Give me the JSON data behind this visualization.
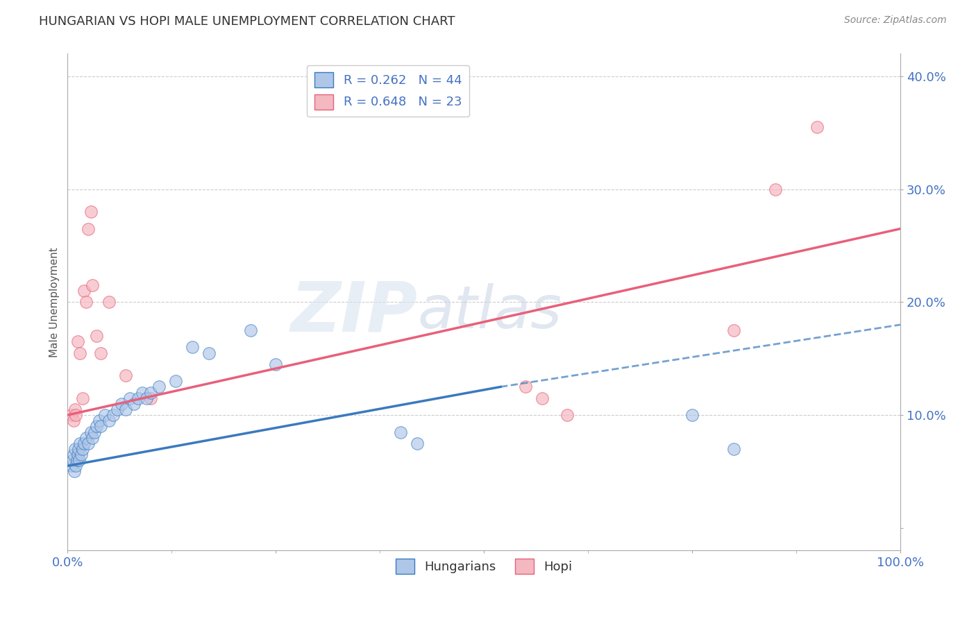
{
  "title": "HUNGARIAN VS HOPI MALE UNEMPLOYMENT CORRELATION CHART",
  "source": "Source: ZipAtlas.com",
  "ylabel": "Male Unemployment",
  "xlabel": "",
  "xlim": [
    0.0,
    1.0
  ],
  "ylim": [
    -0.02,
    0.42
  ],
  "xticks": [
    0.0,
    0.25,
    0.5,
    0.75,
    1.0
  ],
  "xticklabels": [
    "0.0%",
    "",
    "",
    "",
    "100.0%"
  ],
  "yticks": [
    0.0,
    0.1,
    0.2,
    0.3,
    0.4
  ],
  "yticklabels": [
    "",
    "10.0%",
    "20.0%",
    "30.0%",
    "40.0%"
  ],
  "grid_yticks": [
    0.1,
    0.2,
    0.3,
    0.4
  ],
  "legend_entries": [
    {
      "label": "R = 0.262   N = 44",
      "color": "#aec6e8"
    },
    {
      "label": "R = 0.648   N = 23",
      "color": "#f4b8c1"
    }
  ],
  "hungarian_scatter": [
    [
      0.005,
      0.055
    ],
    [
      0.006,
      0.06
    ],
    [
      0.007,
      0.065
    ],
    [
      0.008,
      0.05
    ],
    [
      0.009,
      0.07
    ],
    [
      0.01,
      0.055
    ],
    [
      0.011,
      0.06
    ],
    [
      0.012,
      0.065
    ],
    [
      0.013,
      0.07
    ],
    [
      0.014,
      0.06
    ],
    [
      0.015,
      0.075
    ],
    [
      0.016,
      0.065
    ],
    [
      0.018,
      0.07
    ],
    [
      0.02,
      0.075
    ],
    [
      0.022,
      0.08
    ],
    [
      0.025,
      0.075
    ],
    [
      0.028,
      0.085
    ],
    [
      0.03,
      0.08
    ],
    [
      0.032,
      0.085
    ],
    [
      0.035,
      0.09
    ],
    [
      0.038,
      0.095
    ],
    [
      0.04,
      0.09
    ],
    [
      0.045,
      0.1
    ],
    [
      0.05,
      0.095
    ],
    [
      0.055,
      0.1
    ],
    [
      0.06,
      0.105
    ],
    [
      0.065,
      0.11
    ],
    [
      0.07,
      0.105
    ],
    [
      0.075,
      0.115
    ],
    [
      0.08,
      0.11
    ],
    [
      0.085,
      0.115
    ],
    [
      0.09,
      0.12
    ],
    [
      0.095,
      0.115
    ],
    [
      0.1,
      0.12
    ],
    [
      0.11,
      0.125
    ],
    [
      0.13,
      0.13
    ],
    [
      0.15,
      0.16
    ],
    [
      0.17,
      0.155
    ],
    [
      0.22,
      0.175
    ],
    [
      0.25,
      0.145
    ],
    [
      0.4,
      0.085
    ],
    [
      0.42,
      0.075
    ],
    [
      0.75,
      0.1
    ],
    [
      0.8,
      0.07
    ]
  ],
  "hopi_scatter": [
    [
      0.005,
      0.1
    ],
    [
      0.007,
      0.095
    ],
    [
      0.009,
      0.105
    ],
    [
      0.01,
      0.1
    ],
    [
      0.012,
      0.165
    ],
    [
      0.015,
      0.155
    ],
    [
      0.018,
      0.115
    ],
    [
      0.02,
      0.21
    ],
    [
      0.022,
      0.2
    ],
    [
      0.025,
      0.265
    ],
    [
      0.028,
      0.28
    ],
    [
      0.03,
      0.215
    ],
    [
      0.035,
      0.17
    ],
    [
      0.04,
      0.155
    ],
    [
      0.05,
      0.2
    ],
    [
      0.07,
      0.135
    ],
    [
      0.1,
      0.115
    ],
    [
      0.55,
      0.125
    ],
    [
      0.57,
      0.115
    ],
    [
      0.6,
      0.1
    ],
    [
      0.8,
      0.175
    ],
    [
      0.85,
      0.3
    ],
    [
      0.9,
      0.355
    ]
  ],
  "hungarian_line_solid": [
    [
      0.0,
      0.055
    ],
    [
      0.52,
      0.125
    ]
  ],
  "hungarian_line_dashed": [
    [
      0.52,
      0.125
    ],
    [
      1.0,
      0.18
    ]
  ],
  "hopi_line": [
    [
      0.0,
      0.1
    ],
    [
      1.0,
      0.265
    ]
  ],
  "hungarian_line_color": "#3a7abf",
  "hopi_line_color": "#e8607a",
  "scatter_blue": "#aec6e8",
  "scatter_pink": "#f4b8c1",
  "background_color": "#ffffff",
  "title_color": "#333333",
  "axis_color": "#555555",
  "tick_color": "#4472c4",
  "grid_color": "#cccccc",
  "watermark_zip_color": "#d8e4f0",
  "watermark_atlas_color": "#c8d8e8"
}
